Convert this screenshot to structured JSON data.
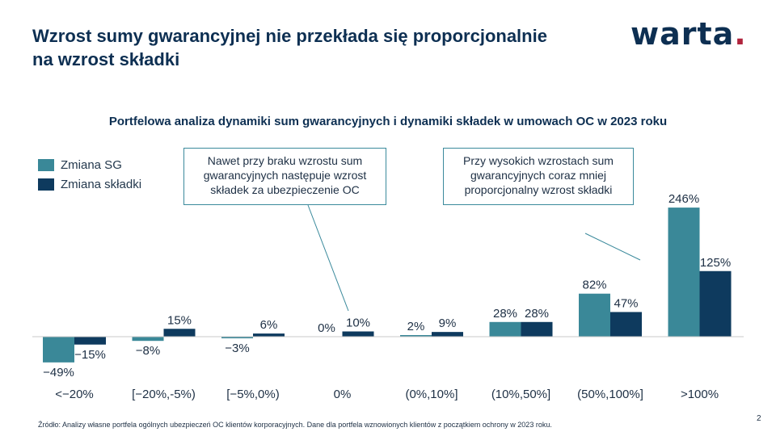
{
  "header": {
    "title_line1": "Wzrost sumy gwarancyjnej nie przekłada się proporcjonalnie",
    "title_line2": "na wzrost składki",
    "logo_text": "warta",
    "logo_dot": "."
  },
  "colors": {
    "sg": "#3a8898",
    "skladka": "#0e3a5e",
    "navy": "#0d2f52",
    "logo_dot": "#b0243d"
  },
  "callouts": [
    {
      "text_line1": "Nawet przy braku wzrostu sum",
      "text_line2": "gwarancyjnych następuje wzrost",
      "text_line3": "składek za ubezpieczenie OC"
    },
    {
      "text_line1": "Przy wysokich wzrostach sum",
      "text_line2": "gwarancyjnych coraz mniej",
      "text_line3": "proporcjonalny wzrost składki"
    }
  ],
  "footer": {
    "source": "Źródło: Analizy własne portfela ogólnych ubezpieczeń OC klientów korporacyjnych. Dane dla portfela wznowionych klientów z początkiem ochrony w 2023 roku.",
    "page_number": "2"
  },
  "chart_data": {
    "type": "bar",
    "title": "Portfelowa analiza dynamiki sum gwarancyjnych i dynamiki składek w umowach OC w 2023 roku",
    "categories": [
      "<-20%",
      "[-20%,-5%)",
      "[-5%,0%)",
      "0%",
      "(0%,10%]",
      "(10%,50%]",
      "(50%,100%]",
      ">100%"
    ],
    "series": [
      {
        "name": "Zmiana SG",
        "values": [
          -49,
          -8,
          -3,
          0,
          2,
          28,
          82,
          246
        ],
        "labels": [
          "-49%",
          "-8%",
          "-3%",
          "0%",
          "2%",
          "28%",
          "82%",
          "246%"
        ]
      },
      {
        "name": "Zmiana składki",
        "values": [
          -15,
          15,
          6,
          10,
          9,
          28,
          47,
          125
        ],
        "labels": [
          "-15%",
          "15%",
          "6%",
          "10%",
          "9%",
          "28%",
          "47%",
          "125%"
        ]
      }
    ],
    "legend": "top-left",
    "grid": false
  }
}
